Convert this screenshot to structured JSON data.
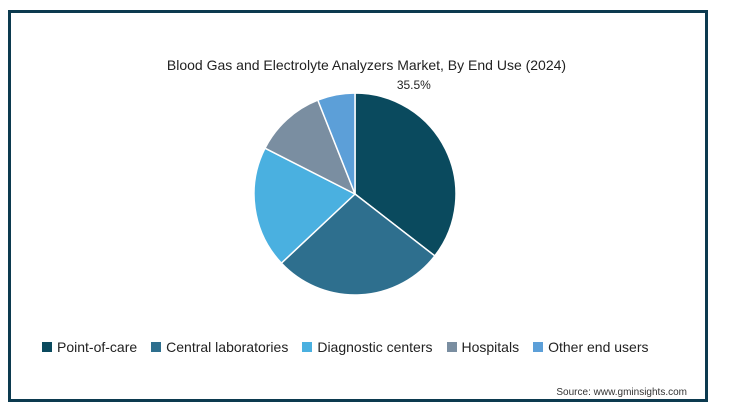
{
  "chart_data": {
    "type": "pie",
    "title": "Blood Gas and Electrolyte Analyzers Market, By End Use (2024)",
    "series": [
      {
        "name": "Point-of-care",
        "value": 35.5,
        "color": "#0a4a5e",
        "label": "35.5%"
      },
      {
        "name": "Central laboratories",
        "value": 27.5,
        "color": "#2e6f8e",
        "label": ""
      },
      {
        "name": "Diagnostic centers",
        "value": 19.5,
        "color": "#4ab0e0",
        "label": ""
      },
      {
        "name": "Hospitals",
        "value": 11.5,
        "color": "#7a8ea1",
        "label": ""
      },
      {
        "name": "Other end users",
        "value": 6.0,
        "color": "#5c9fd8",
        "label": ""
      }
    ],
    "legend_placement": "bottom"
  },
  "source": "Source: www.gminsights.com"
}
